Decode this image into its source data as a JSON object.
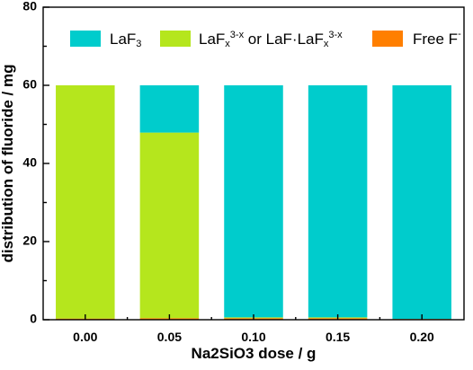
{
  "chart_data": {
    "type": "bar",
    "stacked": true,
    "title": "",
    "xlabel": "Na2SiO3 dose / g",
    "ylabel": "distribution of fluoride / mg",
    "categories": [
      "0.00",
      "0.05",
      "0.10",
      "0.15",
      "0.20"
    ],
    "ylim": [
      0,
      80
    ],
    "yticks": [
      0,
      20,
      40,
      60,
      80
    ],
    "grid": false,
    "legend_position": "top",
    "series": [
      {
        "name": "Free F-",
        "color": "#ff7f00",
        "values": [
          0.3,
          0.4,
          0.4,
          0.4,
          0.2
        ]
      },
      {
        "name": "LaFx3-x or LaF·LaFx3-x",
        "color": "#b5e61d",
        "values": [
          59.7,
          47.5,
          0.2,
          0.2,
          0.0
        ]
      },
      {
        "name": "LaF3",
        "color": "#00cccc",
        "values": [
          0.0,
          12.1,
          59.4,
          59.4,
          59.8
        ]
      }
    ]
  }
}
